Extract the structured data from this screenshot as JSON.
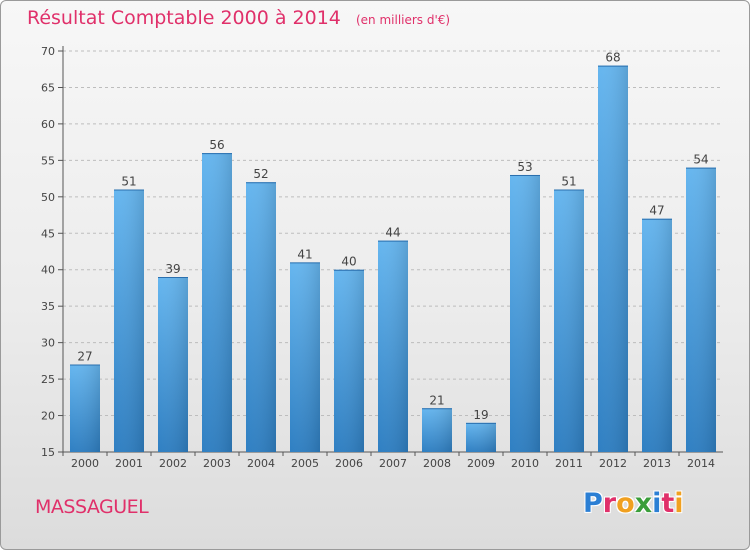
{
  "title": "Résultat Comptable 2000 à 2014",
  "subtitle": "(en milliers d'€)",
  "place": "MASSAGUEL",
  "logo": {
    "text": "Proxiti",
    "letters": [
      {
        "char": "P",
        "color": "#2b7fd4"
      },
      {
        "char": "r",
        "color": "#e0306a"
      },
      {
        "char": "o",
        "color": "#f0a020"
      },
      {
        "char": "x",
        "color": "#3a9e3a"
      },
      {
        "char": "i",
        "color": "#2b7fd4"
      },
      {
        "char": "t",
        "color": "#e0306a"
      },
      {
        "char": "i",
        "color": "#f0a020"
      }
    ]
  },
  "colors": {
    "bar": "#4a9fe0",
    "bar_light": "#64b4ee",
    "bar_dark": "#2e7fc4",
    "title": "#e0306a",
    "grid": "#bdbdbd"
  },
  "chart_data": {
    "type": "bar",
    "categories": [
      "2000",
      "2001",
      "2002",
      "2003",
      "2004",
      "2005",
      "2006",
      "2007",
      "2008",
      "2009",
      "2010",
      "2011",
      "2012",
      "2013",
      "2014"
    ],
    "values": [
      27,
      51,
      39,
      56,
      52,
      41,
      40,
      44,
      21,
      19,
      53,
      51,
      68,
      47,
      54
    ],
    "ylim": [
      15,
      70
    ],
    "yticks": [
      15,
      20,
      25,
      30,
      35,
      40,
      45,
      50,
      55,
      60,
      65,
      70
    ],
    "grid": true,
    "xlabel": "",
    "ylabel": ""
  }
}
